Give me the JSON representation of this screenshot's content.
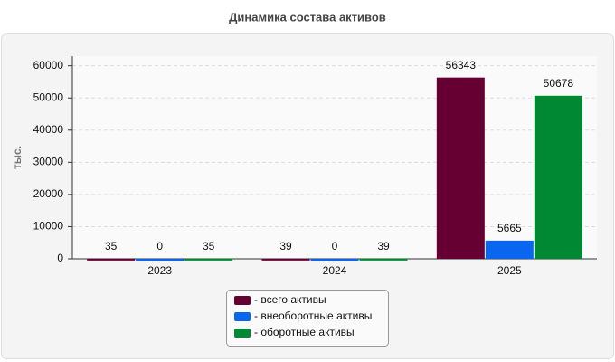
{
  "chart_data": {
    "type": "bar",
    "title": "Динамика состава активов",
    "y_label": "тыс.",
    "categories": [
      "2023",
      "2024",
      "2025"
    ],
    "series": [
      {
        "name": "- всего активы",
        "color": "#660033",
        "values": [
          35,
          39,
          56343
        ]
      },
      {
        "name": "- внеоборотные активы",
        "color": "#0a66ee",
        "values": [
          0,
          0,
          5665
        ]
      },
      {
        "name": "- оборотные активы",
        "color": "#008833",
        "values": [
          35,
          39,
          50678
        ]
      }
    ],
    "ylim": [
      0,
      63000
    ],
    "yticks": [
      0,
      10000,
      20000,
      30000,
      40000,
      50000,
      60000
    ],
    "grid": true,
    "legend": "bottom"
  }
}
